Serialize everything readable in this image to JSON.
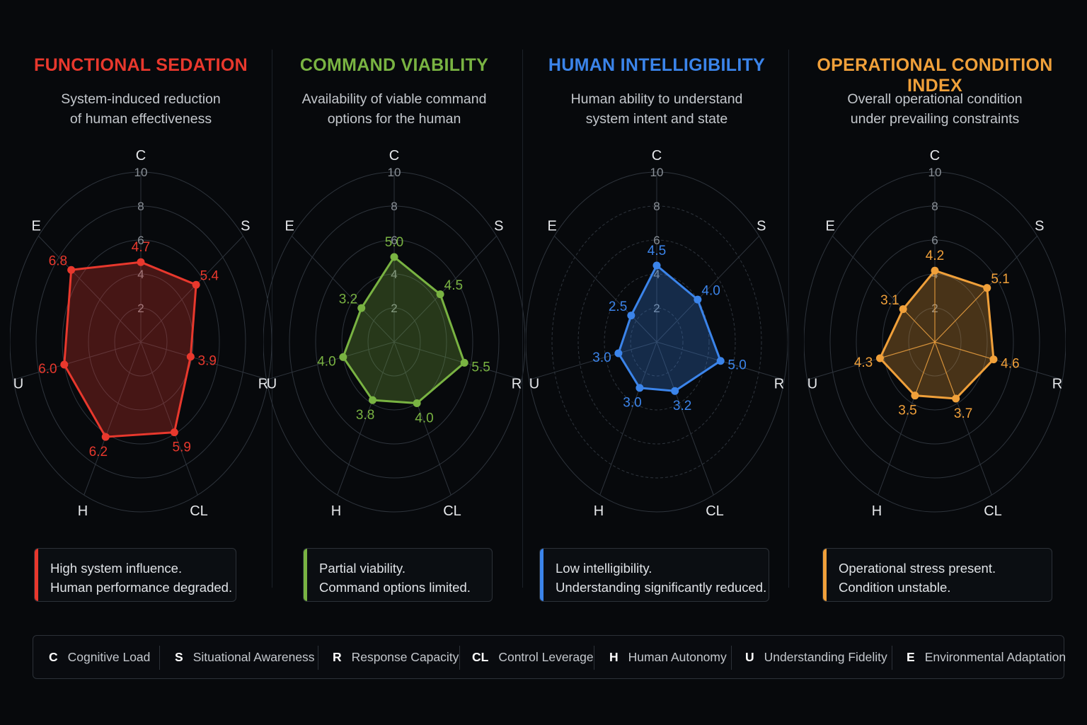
{
  "panels": [
    {
      "title": "FUNCTIONAL SEDATION",
      "subtitle": [
        "System-induced reduction",
        "of human effectiveness"
      ],
      "color": "#e8382d",
      "note": [
        "High system influence.",
        "Human performance degraded."
      ]
    },
    {
      "title": "COMMAND VIABILITY",
      "subtitle": [
        "Availability of viable command",
        "options for the human"
      ],
      "color": "#79b342",
      "note": [
        "Partial viability.",
        "Command options limited."
      ]
    },
    {
      "title": "HUMAN INTELLIGIBILITY",
      "subtitle": [
        "Human ability to understand",
        "system intent and state"
      ],
      "color": "#3b84ea",
      "note": [
        "Low intelligibility.",
        "Understanding significantly reduced."
      ]
    },
    {
      "title": "OPERATIONAL CONDITION INDEX",
      "subtitle": [
        "Overall operational condition",
        "under prevailing constraints"
      ],
      "color": "#f0a03a",
      "note": [
        "Operational stress present.",
        "Condition unstable."
      ]
    }
  ],
  "legend": [
    {
      "abbr": "C",
      "label": "Cognitive Load"
    },
    {
      "abbr": "S",
      "label": "Situational Awareness"
    },
    {
      "abbr": "R",
      "label": "Response Capacity"
    },
    {
      "abbr": "CL",
      "label": "Control Leverage"
    },
    {
      "abbr": "H",
      "label": "Human Autonomy"
    },
    {
      "abbr": "U",
      "label": "Understanding Fidelity"
    },
    {
      "abbr": "E",
      "label": "Environmental Adaptation"
    }
  ],
  "chart_data": [
    {
      "type": "radar",
      "title": "FUNCTIONAL SEDATION",
      "axes": [
        "C",
        "S",
        "R",
        "CL",
        "H",
        "U",
        "E"
      ],
      "range": [
        0,
        10
      ],
      "ticks": [
        "2",
        "4",
        "6",
        "8",
        "10"
      ],
      "values": [
        4.7,
        5.4,
        3.9,
        5.9,
        6.2,
        6.0,
        6.8
      ],
      "labels": [
        "4.7",
        "5.4",
        "3.9",
        "5.9",
        "6.2",
        "6.0",
        "6.8"
      ]
    },
    {
      "type": "radar",
      "title": "COMMAND VIABILITY",
      "axes": [
        "C",
        "S",
        "R",
        "CL",
        "H",
        "U",
        "E"
      ],
      "range": [
        0,
        10
      ],
      "ticks": [
        "2",
        "4",
        "6",
        "8",
        "10"
      ],
      "values": [
        5.0,
        4.5,
        5.5,
        4.0,
        3.8,
        4.0,
        3.2
      ],
      "labels": [
        "5.0",
        "4.5",
        "5.5",
        "4.0",
        "3.8",
        "4.0",
        "3.2"
      ]
    },
    {
      "type": "radar",
      "title": "HUMAN INTELLIGIBILITY",
      "axes": [
        "C",
        "S",
        "R",
        "CL",
        "H",
        "U",
        "E"
      ],
      "range": [
        0,
        10
      ],
      "ticks": [
        "2",
        "4",
        "6",
        "8",
        "10"
      ],
      "values": [
        4.5,
        4.0,
        5.0,
        3.2,
        3.0,
        3.0,
        2.5
      ],
      "labels": [
        "4.5",
        "4.0",
        "5.0",
        "3.2",
        "3.0",
        "3.0",
        "2.5"
      ]
    },
    {
      "type": "radar",
      "title": "OPERATIONAL CONDITION INDEX",
      "axes": [
        "C",
        "S",
        "R",
        "CL",
        "H",
        "U",
        "E"
      ],
      "range": [
        0,
        10
      ],
      "ticks": [
        "2",
        "4",
        "6",
        "8",
        "10"
      ],
      "values": [
        4.2,
        5.1,
        4.6,
        3.7,
        3.5,
        4.3,
        3.1
      ],
      "labels": [
        "4.2",
        "5.1",
        "4.6",
        "3.7",
        "3.5",
        "4.3",
        "3.1"
      ]
    }
  ]
}
